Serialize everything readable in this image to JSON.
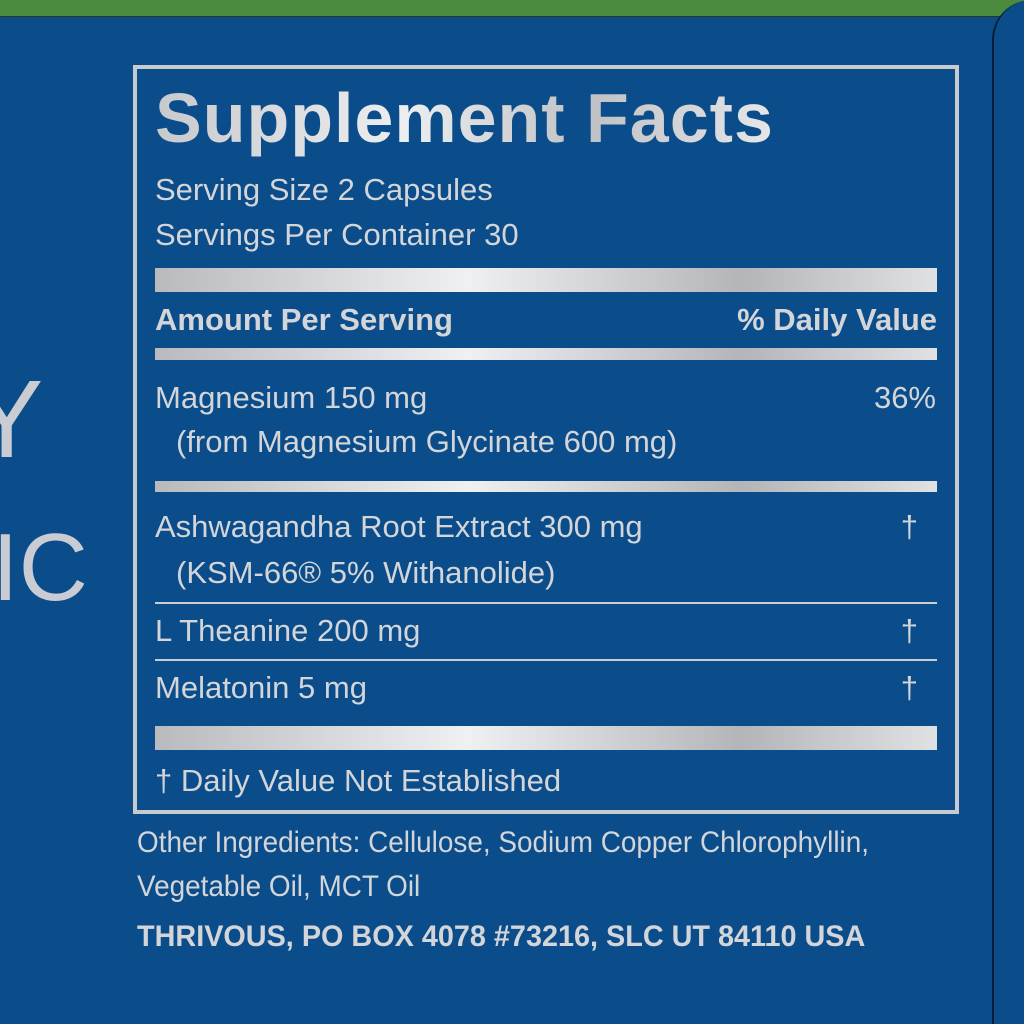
{
  "side_text": {
    "line1": "Y",
    "line2": "IC"
  },
  "facts": {
    "title": "Supplement Facts",
    "serving_size": "Serving Size 2 Capsules",
    "servings_per_container": "Servings Per Container 30",
    "header_amount": "Amount Per Serving",
    "header_dv": "% Daily Value",
    "rows": [
      {
        "name": "Magnesium 150 mg",
        "sub": "(from Magnesium Glycinate 600 mg)",
        "dv": "36%"
      },
      {
        "name": "Ashwagandha Root Extract 300 mg",
        "sub": "(KSM-66® 5% Withanolide)",
        "dv": "†"
      },
      {
        "name": "L Theanine 200 mg",
        "dv": "†"
      },
      {
        "name": "Melatonin 5 mg",
        "dv": "†"
      }
    ],
    "footnote": "† Daily Value Not Established"
  },
  "other_ingredients": {
    "line1": "Other Ingredients: Cellulose, Sodium Copper Chlorophyllin,",
    "line2": "Vegetable Oil, MCT Oil"
  },
  "address": "THRIVOUS, PO BOX 4078 #73216, SLC UT 84110 USA",
  "colors": {
    "background": "#0b4d8a",
    "top_band": "#4b8b3e",
    "text": "#d3d5d9"
  }
}
